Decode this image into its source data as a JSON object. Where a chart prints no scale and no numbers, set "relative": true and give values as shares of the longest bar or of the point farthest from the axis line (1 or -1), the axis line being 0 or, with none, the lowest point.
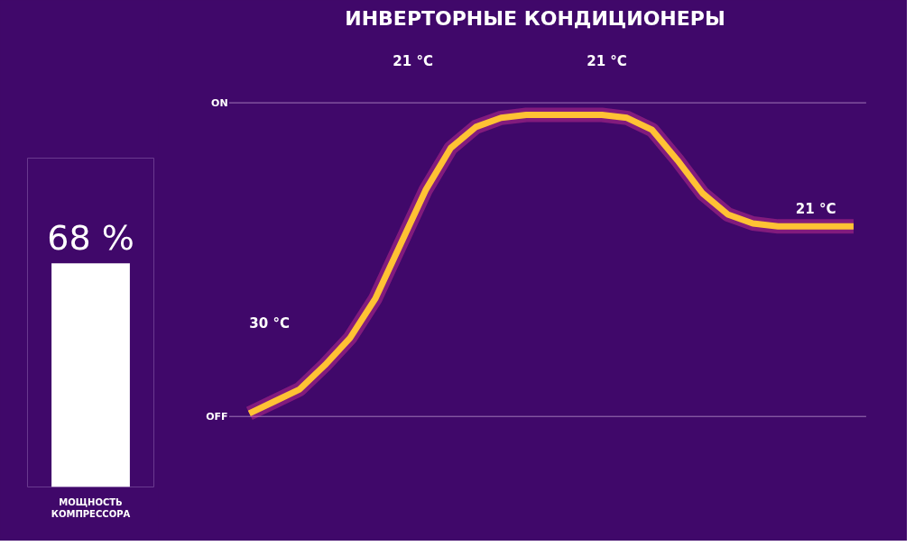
{
  "chart_data": [
    {
      "type": "bar",
      "categories": [
        null
      ],
      "values": [
        68
      ],
      "ylim": [
        0,
        100
      ],
      "value_labels": [
        "68 %"
      ],
      "color": "#ffffff",
      "xlabel": "МОЩНОСТЬ\nКОМПРЕССОРА"
    },
    {
      "type": "line",
      "title": "ИНВЕРТОРНЫЕ КОНДИЦИОНЕРЫ",
      "categories": [
        null,
        null,
        null,
        null,
        null,
        null,
        null,
        null,
        null,
        null,
        null,
        null,
        null,
        null,
        null,
        null,
        null,
        null,
        null,
        null,
        null,
        null,
        null,
        null,
        null
      ],
      "series": [
        {
          "color": "#ffc234",
          "values": [
            0.01,
            0.05,
            0.09,
            0.17,
            0.26,
            0.39,
            0.57,
            0.75,
            0.89,
            0.96,
            0.99,
            1,
            1,
            1,
            1,
            0.99,
            0.95,
            0.85,
            0.74,
            0.67,
            0.64,
            0.63,
            0.63,
            0.63,
            0.63
          ]
        }
      ],
      "relative": true,
      "ref_lines": [
        {
          "axis": "y",
          "value": 0,
          "label": "OFF"
        },
        {
          "axis": "y",
          "value": 1.04,
          "label": "ON"
        }
      ],
      "marker": "none",
      "line_style": "solid",
      "annotations": [
        "30 °C",
        "21 °C",
        "21 °C",
        "21 °C"
      ]
    }
  ]
}
